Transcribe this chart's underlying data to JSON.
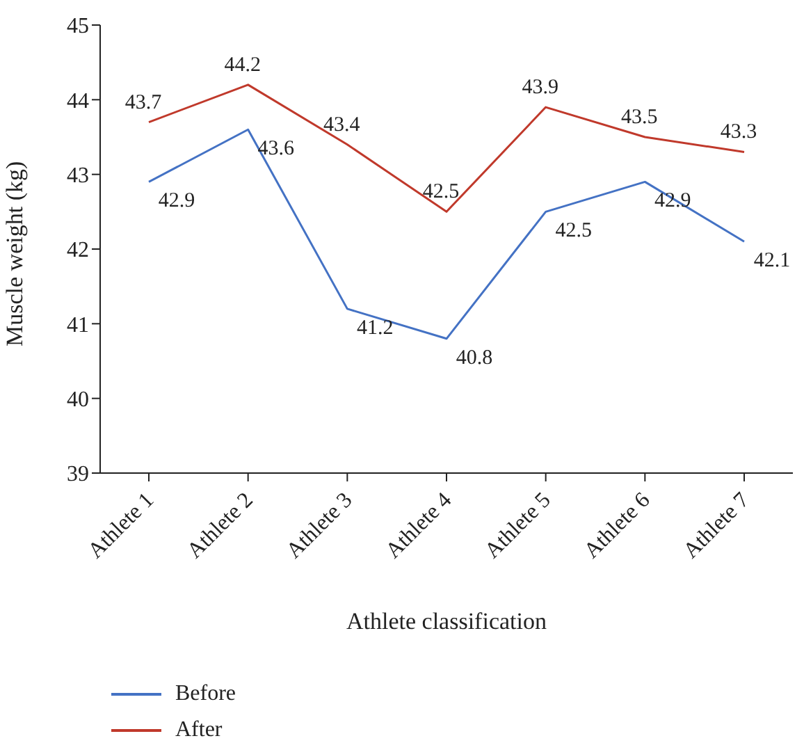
{
  "chart_data": {
    "type": "line",
    "xlabel": "Athlete classification",
    "ylabel": "Muscle weight (kg)",
    "categories": [
      "Athlete 1",
      "Athlete 2",
      "Athlete 3",
      "Athlete 4",
      "Athlete 5",
      "Athlete 6",
      "Athlete 7"
    ],
    "series": [
      {
        "name": "Before",
        "color": "#4472c4",
        "values": [
          42.9,
          43.6,
          41.2,
          40.8,
          42.5,
          42.9,
          42.1
        ]
      },
      {
        "name": "After",
        "color": "#c0392b",
        "values": [
          43.7,
          44.2,
          43.4,
          42.5,
          43.9,
          43.5,
          43.3
        ]
      }
    ],
    "ylim": [
      39,
      45
    ],
    "yticks": [
      39,
      40,
      41,
      42,
      43,
      44,
      45
    ],
    "grid": false,
    "legend": "bottom left",
    "marker": "none",
    "line_style": "solid",
    "data_labels": true
  }
}
